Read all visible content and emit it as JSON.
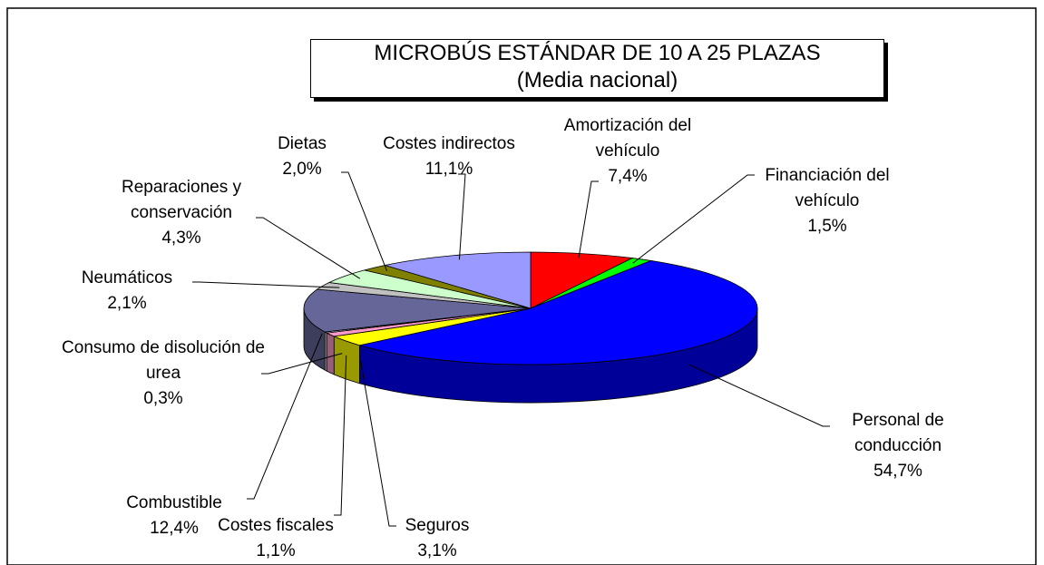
{
  "chart_data": {
    "type": "pie",
    "title": "MICROBÚS ESTÁNDAR DE 10 A 25 PLAZAS",
    "subtitle": "(Media nacional)",
    "categories": [
      "Amortización del vehículo",
      "Financiación del vehículo",
      "Personal de conducción",
      "Seguros",
      "Costes fiscales",
      "Consumo de disolución de urea",
      "Combustible",
      "Neumáticos",
      "Reparaciones y conservación",
      "Dietas",
      "Costes indirectos"
    ],
    "values": [
      7.4,
      1.5,
      54.7,
      3.1,
      1.1,
      0.3,
      12.4,
      2.1,
      4.3,
      2.0,
      11.1
    ],
    "value_labels": [
      "7,4%",
      "1,5%",
      "54,7%",
      "3,1%",
      "1,1%",
      "0,3%",
      "12,4%",
      "2,1%",
      "4,3%",
      "2,0%",
      "11,1%"
    ],
    "colors": [
      "#ff0000",
      "#00ff00",
      "#0000ff",
      "#ffff00",
      "#ff99cc",
      "#ffffff",
      "#666699",
      "#c0c0c0",
      "#ccffcc",
      "#808000",
      "#9999ff"
    ]
  }
}
